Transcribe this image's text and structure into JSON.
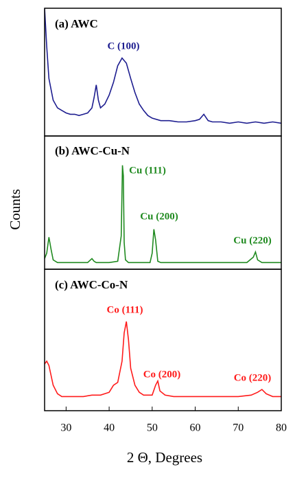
{
  "xlabel": "2 Θ, Degrees",
  "ylabel": "Counts",
  "chart_data": [
    {
      "type": "line",
      "title": "(a) AWC",
      "annotations": [
        "C (100)"
      ],
      "color": "#1c1c8f",
      "xlim": [
        25,
        80
      ],
      "ylim": [
        0,
        100
      ],
      "x": [
        25,
        25.5,
        26,
        27,
        28,
        29,
        30,
        31,
        32,
        33,
        34,
        35,
        36,
        36.5,
        37,
        37.5,
        38,
        39,
        40,
        41,
        42,
        43,
        44,
        45,
        46,
        47,
        48,
        49,
        50,
        52,
        54,
        56,
        58,
        60,
        61,
        62,
        63,
        64,
        66,
        68,
        70,
        72,
        74,
        76,
        78,
        80
      ],
      "values": [
        100,
        70,
        45,
        28,
        22,
        20,
        18,
        17,
        17,
        16,
        17,
        18,
        22,
        30,
        40,
        28,
        22,
        25,
        32,
        42,
        55,
        61,
        57,
        45,
        34,
        25,
        20,
        16,
        14,
        12,
        12,
        11,
        11,
        12,
        13,
        17,
        12,
        11,
        11,
        10,
        11,
        10,
        11,
        10,
        11,
        10
      ]
    },
    {
      "type": "line",
      "title": "(b) AWC-Cu-N",
      "annotations": [
        "Cu (111)",
        "Cu (200)",
        "Cu (220)"
      ],
      "color": "#1f8a1f",
      "xlim": [
        25,
        80
      ],
      "ylim": [
        0,
        100
      ],
      "x": [
        25,
        25.5,
        26,
        26.5,
        27,
        28,
        30,
        32,
        34,
        35,
        36,
        36.5,
        37,
        38,
        40,
        42,
        42.8,
        43.1,
        43.3,
        43.5,
        43.8,
        44.5,
        46,
        48,
        49.5,
        50,
        50.4,
        50.8,
        51.3,
        52,
        55,
        60,
        65,
        70,
        72,
        73.5,
        74,
        74.5,
        75.5,
        78,
        80
      ],
      "values": [
        8,
        12,
        24,
        15,
        7,
        5,
        5,
        5,
        5,
        5,
        8,
        6,
        5,
        5,
        5,
        6,
        25,
        78,
        70,
        20,
        7,
        5,
        5,
        5,
        5,
        12,
        30,
        22,
        6,
        5,
        5,
        5,
        5,
        5,
        5,
        9,
        13,
        7,
        5,
        5,
        5
      ]
    },
    {
      "type": "line",
      "title": "(c) AWC-Co-N",
      "annotations": [
        "Co (111)",
        "Co (200)",
        "Co (220)"
      ],
      "color": "#ff1a1a",
      "xlim": [
        25,
        80
      ],
      "ylim": [
        0,
        100
      ],
      "xticks": [
        30,
        40,
        50,
        60,
        70,
        80
      ],
      "x": [
        25,
        25.5,
        26,
        26.5,
        27,
        28,
        29,
        30,
        32,
        34,
        36,
        38,
        40,
        41,
        42,
        43,
        43.5,
        44,
        44.5,
        45,
        46,
        47,
        48,
        50,
        50.8,
        51.3,
        51.8,
        53,
        55,
        60,
        65,
        70,
        73,
        74.5,
        75.5,
        76.5,
        78,
        80
      ],
      "values": [
        33,
        35,
        32,
        25,
        18,
        12,
        10,
        10,
        10,
        10,
        11,
        11,
        13,
        18,
        20,
        35,
        55,
        63,
        50,
        30,
        18,
        13,
        11,
        11,
        18,
        21,
        14,
        11,
        10,
        10,
        10,
        10,
        11,
        13,
        15,
        12,
        10,
        10
      ]
    }
  ]
}
